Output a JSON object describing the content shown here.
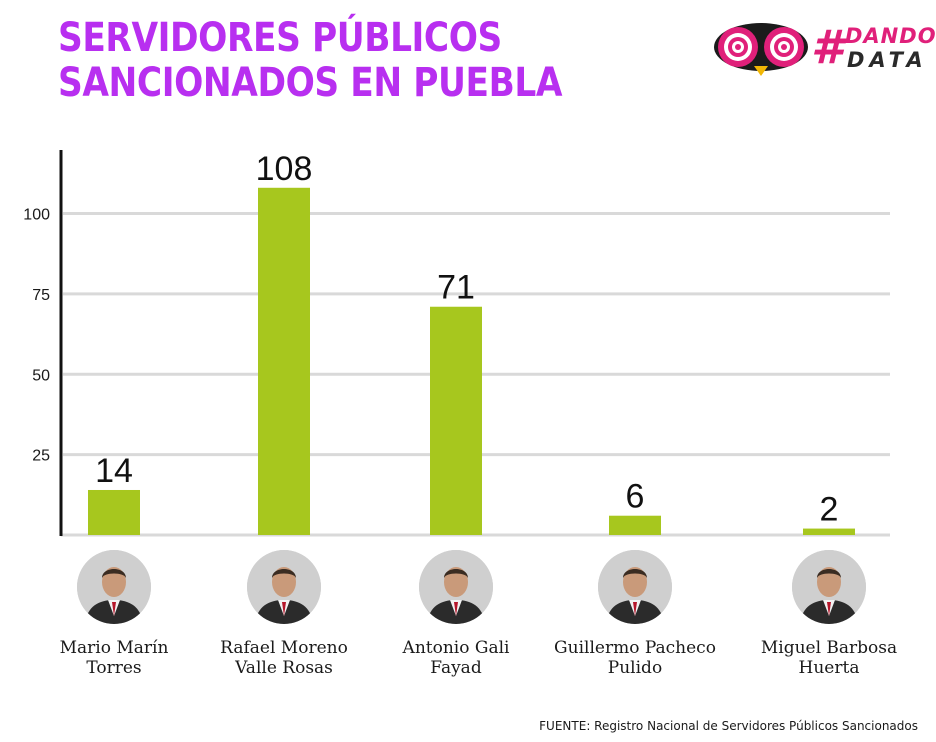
{
  "title": {
    "line1": "SERVIDORES PÚBLICOS",
    "line2": "SANCIONADOS EN PUEBLA"
  },
  "brand": {
    "hash": "#",
    "word1": "DANDO",
    "word2": "DATA",
    "icon": "owl-eyes-icon"
  },
  "colors": {
    "title": "#b82ff0",
    "bar": "#a7c71e",
    "grid": "#d9d9d9",
    "brand_pink": "#e0207a"
  },
  "chart_data": {
    "type": "bar",
    "categories": [
      "Mario Marín\nTorres",
      "Rafael Moreno\nValle Rosas",
      "Antonio Gali\nFayad",
      "Guillermo Pacheco\nPulido",
      "Miguel Barbosa\nHuerta"
    ],
    "values": [
      14,
      108,
      71,
      6,
      2
    ],
    "data_labels": [
      "14",
      "108",
      "71",
      "6",
      "2"
    ],
    "yticks": [
      25,
      50,
      75,
      100
    ],
    "ylim": [
      0,
      120
    ],
    "grid": true,
    "xlabel": "",
    "ylabel": ""
  },
  "people": [
    {
      "name": "Mario Marín\nTorres",
      "avatar": "portrait-icon"
    },
    {
      "name": "Rafael Moreno\nValle Rosas",
      "avatar": "portrait-icon"
    },
    {
      "name": "Antonio Gali\nFayad",
      "avatar": "portrait-icon"
    },
    {
      "name": "Guillermo Pacheco\nPulido",
      "avatar": "portrait-icon"
    },
    {
      "name": "Miguel Barbosa\nHuerta",
      "avatar": "portrait-icon"
    }
  ],
  "source": "FUENTE: Registro Nacional de Servidores Públicos Sancionados"
}
